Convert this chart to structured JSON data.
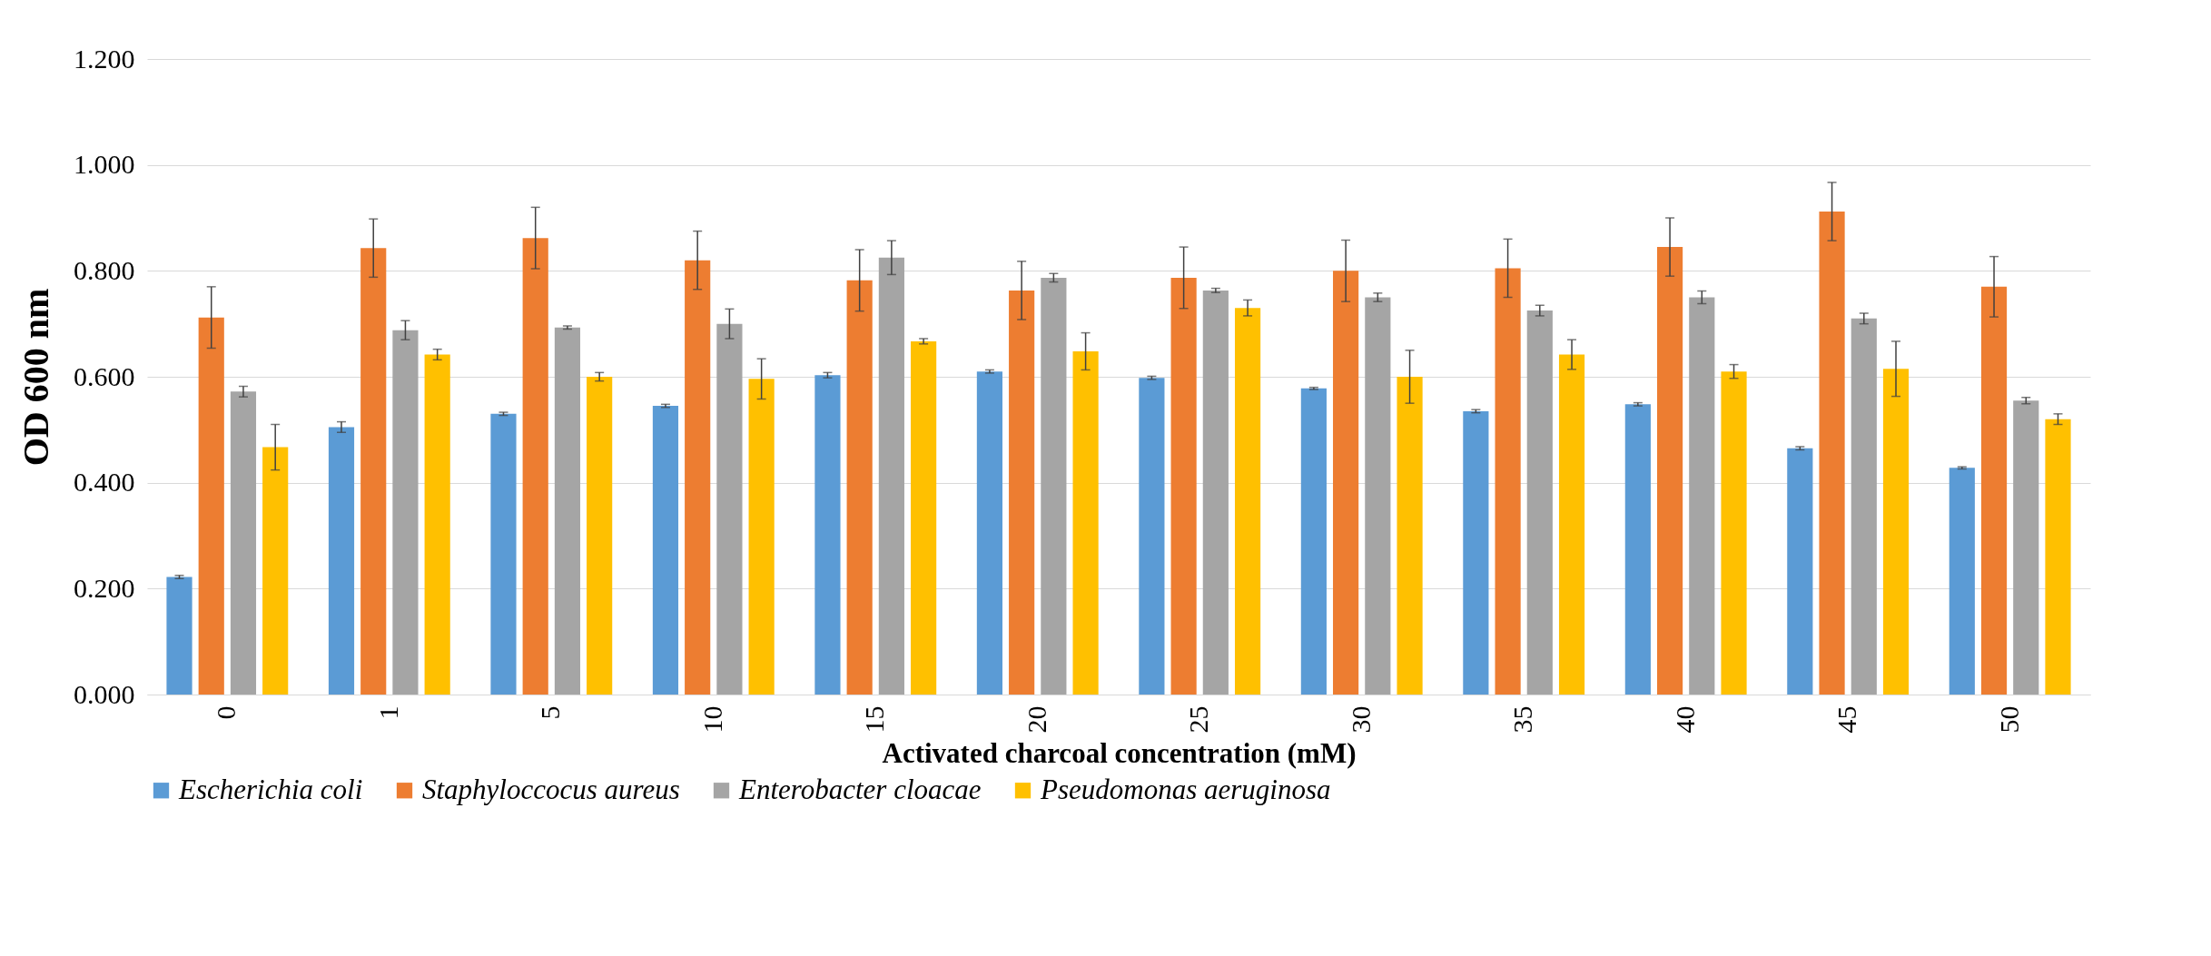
{
  "chart_data": {
    "type": "bar",
    "xlabel": "Activated charcoal concentration (mM)",
    "ylabel": "OD 600 nm",
    "categories": [
      "0",
      "1",
      "5",
      "10",
      "15",
      "20",
      "25",
      "30",
      "35",
      "40",
      "45",
      "50"
    ],
    "ylim": [
      0,
      1.2
    ],
    "yticks": [
      {
        "value": 0,
        "label": "0.000"
      },
      {
        "value": 0.2,
        "label": "0.200"
      },
      {
        "value": 0.4,
        "label": "0.400"
      },
      {
        "value": 0.6,
        "label": "0.600"
      },
      {
        "value": 0.8,
        "label": "0.800"
      },
      {
        "value": 1,
        "label": "1.000"
      },
      {
        "value": 1.2,
        "label": "1.200"
      }
    ],
    "grid": "y",
    "legend": "bottom",
    "series": [
      {
        "name": "Escherichia coli",
        "color": "#5b9bd5",
        "values": [
          0.222,
          0.505,
          0.53,
          0.545,
          0.603,
          0.61,
          0.598,
          0.578,
          0.535,
          0.548,
          0.465,
          0.428
        ],
        "errors": [
          0.003,
          0.01,
          0.003,
          0.003,
          0.005,
          0.003,
          0.003,
          0.002,
          0.003,
          0.003,
          0.003,
          0.002
        ]
      },
      {
        "name": "Staphyloccocus aureus",
        "color": "#ed7d31",
        "values": [
          0.712,
          0.843,
          0.862,
          0.82,
          0.782,
          0.763,
          0.787,
          0.8,
          0.805,
          0.845,
          0.912,
          0.77
        ],
        "errors": [
          0.058,
          0.055,
          0.058,
          0.055,
          0.058,
          0.055,
          0.058,
          0.058,
          0.055,
          0.055,
          0.055,
          0.057
        ]
      },
      {
        "name": "Enterobacter cloacae",
        "color": "#a5a5a5",
        "values": [
          0.572,
          0.688,
          0.693,
          0.7,
          0.825,
          0.787,
          0.763,
          0.75,
          0.725,
          0.75,
          0.71,
          0.555
        ],
        "errors": [
          0.01,
          0.018,
          0.003,
          0.028,
          0.032,
          0.008,
          0.004,
          0.008,
          0.01,
          0.012,
          0.01,
          0.006
        ]
      },
      {
        "name": "Pseudomonas aeruginosa",
        "color": "#ffc000",
        "values": [
          0.467,
          0.642,
          0.6,
          0.596,
          0.667,
          0.648,
          0.73,
          0.6,
          0.642,
          0.61,
          0.615,
          0.52
        ],
        "errors": [
          0.043,
          0.01,
          0.008,
          0.038,
          0.005,
          0.035,
          0.015,
          0.05,
          0.028,
          0.013,
          0.052,
          0.01
        ]
      }
    ]
  }
}
